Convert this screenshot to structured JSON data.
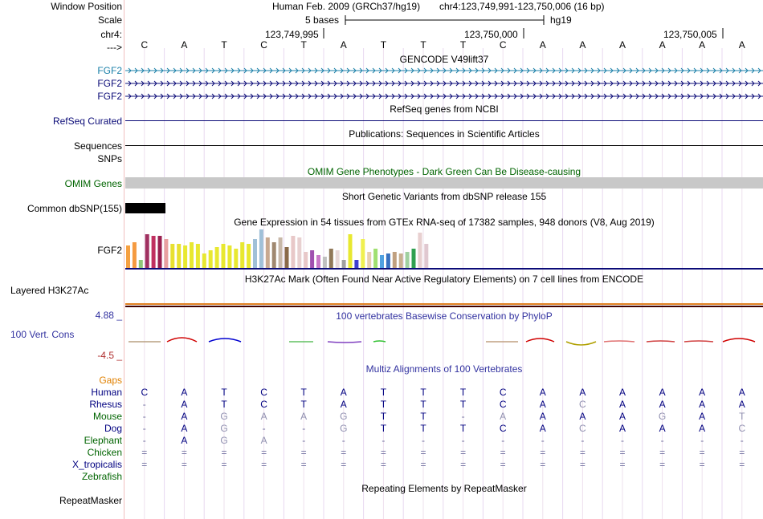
{
  "header": {
    "window_position_label": "Window Position",
    "scale_label": "Scale",
    "chr_label": "chr4:",
    "strand_label": "--->",
    "assembly_text": "Human Feb. 2009 (GRCh37/hg19)",
    "position_text": "chr4:123,749,991-123,750,006 (16 bp)",
    "scale_text": "5 bases",
    "scale_db": "hg19",
    "coords": [
      "123,749,995",
      "123,750,000",
      "123,750,005"
    ],
    "bases": [
      "C",
      "A",
      "T",
      "C",
      "T",
      "A",
      "T",
      "T",
      "T",
      "C",
      "A",
      "A",
      "A",
      "A",
      "A",
      "A"
    ]
  },
  "tracks": {
    "gencode": {
      "title": "GENCODE V49lift37",
      "genes": [
        "FGF2",
        "FGF2",
        "FGF2"
      ]
    },
    "refseq": {
      "title": "RefSeq genes from NCBI",
      "label": "RefSeq Curated"
    },
    "pubs": {
      "title": "Publications: Sequences in Scientific Articles",
      "labels": [
        "Sequences",
        "SNPs"
      ]
    },
    "omim": {
      "title": "OMIM Gene Phenotypes - Dark Green Can Be Disease-causing",
      "label": "OMIM Genes"
    },
    "snp": {
      "title": "Short Genetic Variants from dbSNP release 155",
      "label": "Common dbSNP(155)"
    },
    "gtex": {
      "title": "Gene Expression in 54 tissues from GTEx RNA-seq of 17382 samples, 948 donors (V8, Aug 2019)",
      "label": "FGF2"
    },
    "h3k27ac": {
      "title": "H3K27Ac Mark (Often Found Near Active Regulatory Elements) on 7 cell lines from ENCODE",
      "label": "Layered H3K27Ac"
    },
    "cons": {
      "title": "100 vertebrates Basewise Conservation by PhyloP",
      "label": "100 Vert. Cons",
      "max": "4.88 _",
      "min": "-4.5 _"
    },
    "multiz": {
      "title": "Multiz Alignments of 100 Vertebrates",
      "gaps_label": "Gaps",
      "species": [
        {
          "name": "Human",
          "color": "#000080",
          "bases": [
            "C",
            "A",
            "T",
            "C",
            "T",
            "A",
            "T",
            "T",
            "T",
            "C",
            "A",
            "A",
            "A",
            "A",
            "A",
            "A"
          ]
        },
        {
          "name": "Rhesus",
          "color": "#000080",
          "bases": [
            "-",
            "A",
            "T",
            "C",
            "T",
            "A",
            "T",
            "T",
            "T",
            "C",
            "A",
            "C",
            "A",
            "A",
            "A",
            "A"
          ]
        },
        {
          "name": "Mouse",
          "color": "#006400",
          "bases": [
            "-",
            "A",
            "G",
            "A",
            "A",
            "G",
            "T",
            "T",
            "-",
            "A",
            "A",
            "A",
            "A",
            "G",
            "A",
            "T"
          ]
        },
        {
          "name": "Dog",
          "color": "#000080",
          "bases": [
            "-",
            "A",
            "G",
            "-",
            "-",
            "G",
            "T",
            "T",
            "T",
            "C",
            "A",
            "C",
            "A",
            "A",
            "A",
            "C"
          ]
        },
        {
          "name": "Elephant",
          "color": "#006400",
          "bases": [
            "-",
            "A",
            "G",
            "A",
            "-",
            "-",
            "-",
            "-",
            "-",
            "-",
            "-",
            "-",
            "-",
            "-",
            "-",
            "-"
          ]
        },
        {
          "name": "Chicken",
          "color": "#006400",
          "bases": [
            "=",
            "=",
            "=",
            "=",
            "=",
            "=",
            "=",
            "=",
            "=",
            "=",
            "=",
            "=",
            "=",
            "=",
            "=",
            "="
          ]
        },
        {
          "name": "X_tropicalis",
          "color": "#000080",
          "bases": [
            "=",
            "=",
            "=",
            "=",
            "=",
            "=",
            "=",
            "=",
            "=",
            "=",
            "=",
            "=",
            "=",
            "=",
            "=",
            "="
          ]
        },
        {
          "name": "Zebrafish",
          "color": "#006400",
          "bases": [
            "",
            "",
            "",
            "",
            "",
            "",
            "",
            "",
            "",
            "",
            "",
            "",
            "",
            "",
            "",
            ""
          ]
        }
      ]
    },
    "rmsk": {
      "title": "Repeating Elements by RepeatMasker",
      "label": "RepeatMasker"
    }
  },
  "colors": {
    "gencode_blue": "#1a7fa8",
    "refseq": "#0c0c78",
    "omim_green": "#006400",
    "cons_blue": "#3232a0",
    "gaps": "#e08000"
  }
}
